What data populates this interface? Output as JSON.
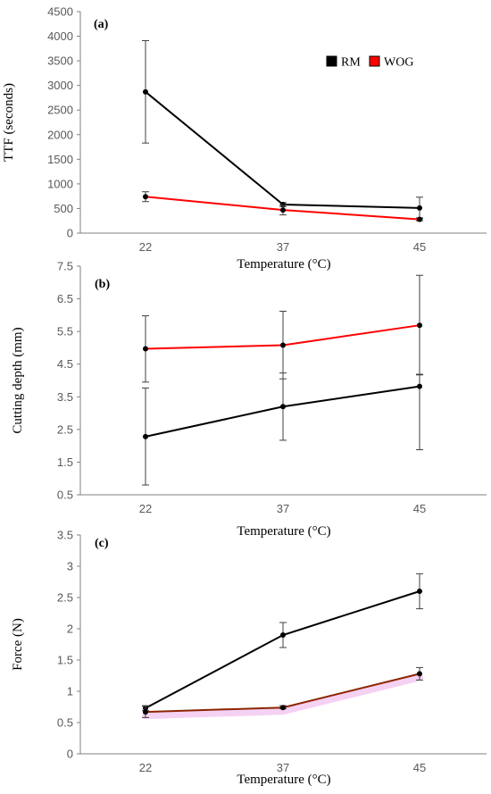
{
  "chart_data": [
    {
      "type": "line",
      "panel_label": "(a)",
      "categories": [
        "22",
        "37",
        "45"
      ],
      "xlabel": "Temperature (°C)",
      "ylabel": "TTF (seconds)",
      "ylim": [
        0,
        4500
      ],
      "yticks": [
        "0",
        "500",
        "1000",
        "1500",
        "2000",
        "2500",
        "3000",
        "3500",
        "4000",
        "4500"
      ],
      "legend_position": "top-right",
      "series": [
        {
          "name": "RM",
          "color": "#000000",
          "values": [
            2870,
            580,
            510
          ],
          "err_low": [
            1830,
            540,
            290
          ],
          "err_high": [
            3910,
            620,
            730
          ]
        },
        {
          "name": "WOG",
          "color": "#ff0000",
          "values": [
            740,
            470,
            280
          ],
          "err_low": [
            640,
            370,
            250
          ],
          "err_high": [
            840,
            570,
            310
          ]
        }
      ]
    },
    {
      "type": "line",
      "panel_label": "(b)",
      "categories": [
        "22",
        "37",
        "45"
      ],
      "xlabel": "Temperature (°C)",
      "ylabel": "Cutting depth (mm)",
      "ylim": [
        0.5,
        7.5
      ],
      "yticks": [
        "0.5",
        "1.5",
        "2.5",
        "3.5",
        "4.5",
        "5.5",
        "6.5",
        "7.5"
      ],
      "series": [
        {
          "name": "RM",
          "color": "#000000",
          "values": [
            2.28,
            3.2,
            3.82
          ],
          "err_low": [
            0.8,
            2.17,
            1.88
          ],
          "err_high": [
            3.77,
            4.23,
            4.19
          ]
        },
        {
          "name": "WOG",
          "color": "#ff0000",
          "values": [
            4.97,
            5.08,
            5.69
          ],
          "err_low": [
            3.95,
            4.05,
            4.17
          ],
          "err_high": [
            5.98,
            6.12,
            7.22
          ]
        }
      ]
    },
    {
      "type": "line",
      "panel_label": "(c)",
      "categories": [
        "22",
        "37",
        "45"
      ],
      "xlabel": "Temperature (°C)",
      "ylabel": "Force (N)",
      "ylim": [
        0,
        3.5
      ],
      "yticks": [
        "0",
        "0.5",
        "1",
        "1.5",
        "2",
        "2.5",
        "3",
        "3.5"
      ],
      "series": [
        {
          "name": "RM",
          "color": "#000000",
          "values": [
            0.73,
            1.9,
            2.6
          ],
          "err_low": [
            0.69,
            1.7,
            2.32
          ],
          "err_high": [
            0.77,
            2.1,
            2.88
          ]
        },
        {
          "name": "WOG",
          "color": "#8b2500",
          "values": [
            0.67,
            0.74,
            1.28
          ],
          "err_low": [
            0.58,
            0.72,
            1.18
          ],
          "err_high": [
            0.76,
            0.77,
            1.38
          ]
        }
      ]
    }
  ]
}
